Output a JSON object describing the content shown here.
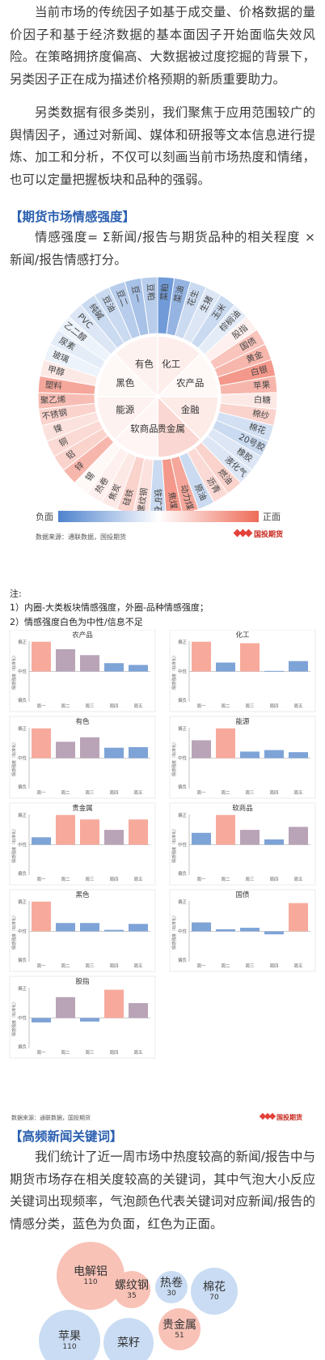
{
  "intro": {
    "p1": "当前市场的传统因子如基于成交量、价格数据的量价因子和基于经济数据的基本面因子开始面临失效风险。在策略拥挤度偏高、大数据被过度挖掘的背景下，另类因子正在成为描述价格预期的新质重要助力。",
    "p2": "另类数据有很多类别，我们聚焦于应用范围较广的舆情因子，通过对新闻、媒体和研报等文本信息进行提炼、加工和分析，不仅可以刻画当前市场热度和情绪，也可以定量把握板块和品种的强弱。"
  },
  "section1": {
    "heading": "【期货市场情感强度】",
    "formula": "情感强度= Σ新闻/报告与期货品种的相关程度 × 新闻/报告情感打分。"
  },
  "sunburst": {
    "inner": [
      {
        "label": "化工",
        "value": 0.25
      },
      {
        "label": "农产品",
        "value": 0.1
      },
      {
        "label": "金融",
        "value": 0.3
      },
      {
        "label": "贵金属",
        "value": 0.6
      },
      {
        "label": "软商品",
        "value": 0.15
      },
      {
        "label": "能源",
        "value": 0.2
      },
      {
        "label": "黑色",
        "value": 0.1
      },
      {
        "label": "有色",
        "value": 0.2
      }
    ],
    "outer": [
      {
        "label": "菜粕",
        "value": -0.8
      },
      {
        "label": "菜油",
        "value": -0.6
      },
      {
        "label": "花生",
        "value": -0.3
      },
      {
        "label": "生猪",
        "value": -0.2
      },
      {
        "label": "玉米",
        "value": -0.3
      },
      {
        "label": "棕榈油",
        "value": -0.15
      },
      {
        "label": "股指",
        "value": 0.1
      },
      {
        "label": "国债",
        "value": 0.4
      },
      {
        "label": "黄金",
        "value": 0.5
      },
      {
        "label": "白银",
        "value": 0.7
      },
      {
        "label": "苹果",
        "value": 0.5
      },
      {
        "label": "白糖",
        "value": 0.15
      },
      {
        "label": "棉纱",
        "value": 0.3
      },
      {
        "label": "棉花",
        "value": -0.25
      },
      {
        "label": "20号胶",
        "value": -0.3
      },
      {
        "label": "橡胶",
        "value": -0.2
      },
      {
        "label": "液化气",
        "value": -0.2
      },
      {
        "label": "燃油",
        "value": 0.3
      },
      {
        "label": "沥青",
        "value": 0.25
      },
      {
        "label": "原油",
        "value": -0.3
      },
      {
        "label": "动力煤",
        "value": 0.6
      },
      {
        "label": "焦煤",
        "value": 0.7
      },
      {
        "label": "铁矿石",
        "value": -0.3
      },
      {
        "label": "螺纹钢",
        "value": 0.2
      },
      {
        "label": "硅铁",
        "value": 0.3
      },
      {
        "label": "焦炭",
        "value": 0.15
      },
      {
        "label": "热卷",
        "value": 0.1
      },
      {
        "label": "锡",
        "value": 0.05
      },
      {
        "label": "锌",
        "value": 0.5
      },
      {
        "label": "铝",
        "value": 0.3
      },
      {
        "label": "铜",
        "value": 0.25
      },
      {
        "label": "镍",
        "value": 0.2
      },
      {
        "label": "不锈钢",
        "value": 0.3
      },
      {
        "label": "聚乙烯",
        "value": 0.45
      },
      {
        "label": "塑料",
        "value": 0.6
      },
      {
        "label": "甲醇",
        "value": 0.15
      },
      {
        "label": "玻璃",
        "value": -0.1
      },
      {
        "label": "尿素",
        "value": -0.15
      },
      {
        "label": "乙二醇",
        "value": -0.1
      },
      {
        "label": "PVC",
        "value": -0.2
      },
      {
        "label": "纯碱",
        "value": -0.3
      },
      {
        "label": "豆油",
        "value": -0.3
      },
      {
        "label": "豆二",
        "value": -0.4
      },
      {
        "label": "豆一",
        "value": -0.5
      },
      {
        "label": "豆粕",
        "value": -0.4
      }
    ],
    "legend_neg": "负面",
    "legend_pos": "正面",
    "source": "数据来源：通联数据，国投期货",
    "logo_text": "国投期货"
  },
  "notes": {
    "title": "注:",
    "n1": "1）内圈-大类板块情感强度，外圈-品种情感强度；",
    "n2": "2）情感强度白色为中性/信息不足"
  },
  "small_charts": {
    "y_label": "情感强度（标准化）",
    "y_top": "偏正",
    "y_mid": "中性",
    "y_bot": "偏负",
    "days": [
      "周一",
      "周二",
      "周三",
      "周四",
      "周五"
    ],
    "colors": {
      "pos": "#f7aa9c",
      "mid": "#b9a3b6",
      "neg": "#7ea3d7"
    }
  },
  "chart_data": [
    {
      "type": "bar",
      "title": "农产品",
      "categories": [
        "周一",
        "周二",
        "周三",
        "周四",
        "周五"
      ],
      "values": [
        1.0,
        0.75,
        0.55,
        0.28,
        0.22
      ],
      "ylim": [
        -1,
        1
      ]
    },
    {
      "type": "bar",
      "title": "化工",
      "categories": [
        "周一",
        "周二",
        "周三",
        "周四",
        "周五"
      ],
      "values": [
        1.0,
        0.3,
        0.95,
        0.02,
        0.35
      ],
      "ylim": [
        -1,
        1
      ]
    },
    {
      "type": "bar",
      "title": "有色",
      "categories": [
        "周一",
        "周二",
        "周三",
        "周四",
        "周五"
      ],
      "values": [
        1.0,
        0.55,
        0.7,
        0.35,
        0.37
      ],
      "ylim": [
        -1,
        1
      ]
    },
    {
      "type": "bar",
      "title": "能源",
      "categories": [
        "周一",
        "周二",
        "周三",
        "周四",
        "周五"
      ],
      "values": [
        0.6,
        1.0,
        0.22,
        0.27,
        0.2
      ],
      "ylim": [
        -1,
        1
      ]
    },
    {
      "type": "bar",
      "title": "贵金属",
      "categories": [
        "周一",
        "周二",
        "周三",
        "周四",
        "周五"
      ],
      "values": [
        0.25,
        1.0,
        0.85,
        0.5,
        0.85
      ],
      "ylim": [
        -1,
        1
      ]
    },
    {
      "type": "bar",
      "title": "软商品",
      "categories": [
        "周一",
        "周二",
        "周三",
        "周四",
        "周五"
      ],
      "values": [
        0.4,
        1.0,
        0.5,
        0.18,
        0.6
      ],
      "ylim": [
        -1,
        1
      ]
    },
    {
      "type": "bar",
      "title": "黑色",
      "categories": [
        "周一",
        "周二",
        "周三",
        "周四",
        "周五"
      ],
      "values": [
        1.0,
        0.28,
        0.28,
        0.05,
        0.25
      ],
      "ylim": [
        -1,
        1
      ]
    },
    {
      "type": "bar",
      "title": "国债",
      "categories": [
        "周一",
        "周二",
        "周三",
        "周四",
        "周五"
      ],
      "values": [
        0.3,
        0.07,
        0.12,
        -0.1,
        0.95
      ],
      "ylim": [
        -1,
        1
      ]
    },
    {
      "type": "bar",
      "title": "股指",
      "categories": [
        "周一",
        "周二",
        "周三",
        "周四",
        "周五"
      ],
      "values": [
        -0.15,
        0.7,
        -0.12,
        0.95,
        0.5
      ],
      "ylim": [
        -1,
        1
      ]
    }
  ],
  "charts_source": "数据来源：通联数据，国投期货",
  "charts_logo": "国投期货",
  "section2": {
    "heading": "【高频新闻关键词】",
    "para": "我们统计了近一周市场中热度较高的新闻/报告中与期货市场存在相关度较高的关键词，其中气泡大小反应关键词出现频率，气泡颜色代表关键词对应新闻/报告的情感分类，蓝色为负面，红色为正面。"
  },
  "bubbles": [
    {
      "keyword": "电解铝",
      "count": "110",
      "sentiment": "positive"
    },
    {
      "keyword": "螺纹钢",
      "count": "35",
      "sentiment": "positive"
    },
    {
      "keyword": "热卷",
      "count": "30",
      "sentiment": "negative"
    },
    {
      "keyword": "棉花",
      "count": "70",
      "sentiment": "negative"
    },
    {
      "keyword": "苹果",
      "count": "110",
      "sentiment": "negative"
    },
    {
      "keyword": "菜籽",
      "count": "",
      "sentiment": "negative"
    },
    {
      "keyword": "贵金属",
      "count": "51",
      "sentiment": "positive"
    }
  ]
}
